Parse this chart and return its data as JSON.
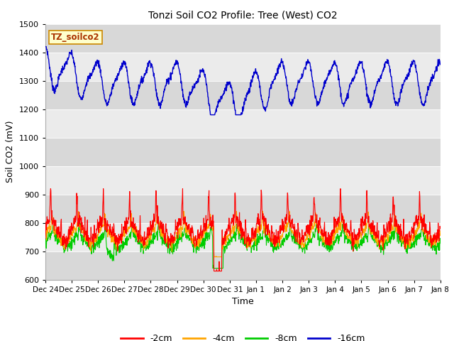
{
  "title": "Tonzi Soil CO2 Profile: Tree (West) CO2",
  "ylabel": "Soil CO2 (mV)",
  "xlabel": "Time",
  "ylim": [
    600,
    1500
  ],
  "yticks": [
    600,
    700,
    800,
    900,
    1000,
    1100,
    1200,
    1300,
    1400,
    1500
  ],
  "xtick_labels": [
    "Dec 24",
    "Dec 25",
    "Dec 26",
    "Dec 27",
    "Dec 28",
    "Dec 29",
    "Dec 30",
    "Dec 31",
    "Jan 1",
    "Jan 2",
    "Jan 3",
    "Jan 4",
    "Jan 5",
    "Jan 6",
    "Jan 7",
    "Jan 8"
  ],
  "label_box_text": "TZ_soilco2",
  "series_labels": [
    "-2cm",
    "-4cm",
    "-8cm",
    "-16cm"
  ],
  "series_colors": [
    "#ff0000",
    "#ffa500",
    "#00cc00",
    "#0000cc"
  ],
  "bg_band_dark": "#d8d8d8",
  "bg_band_light": "#ebebeb"
}
